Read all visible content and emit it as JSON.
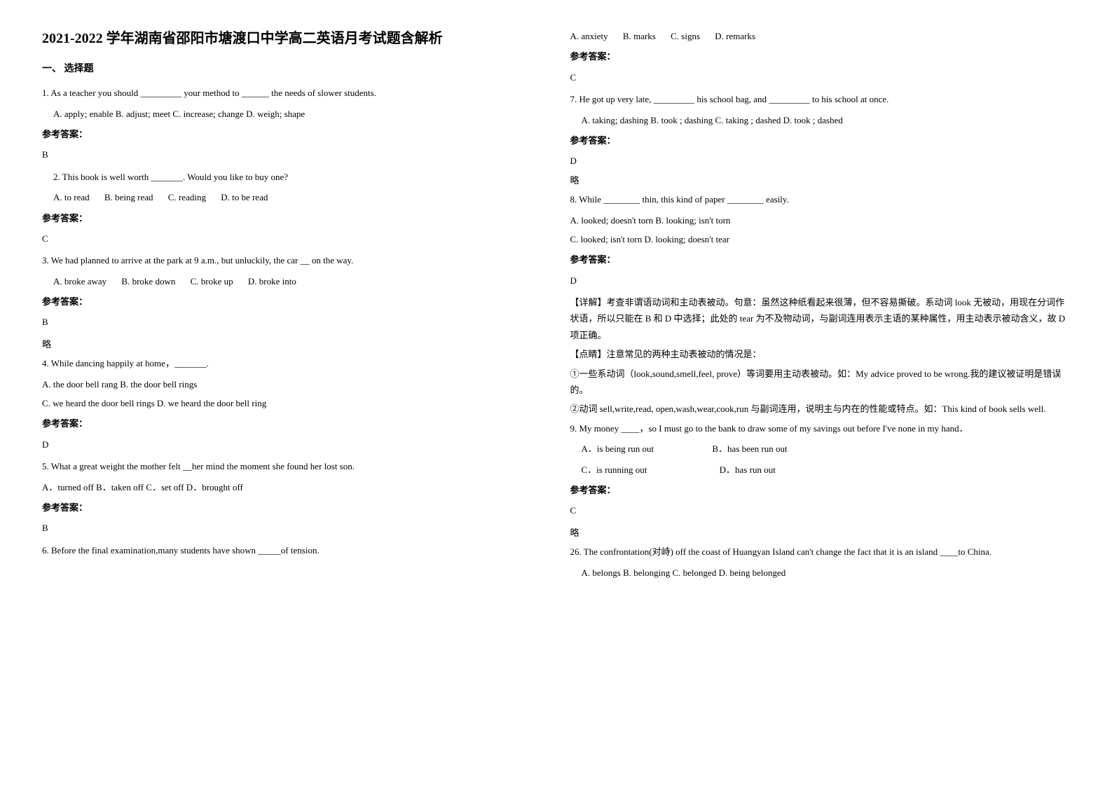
{
  "title": "2021-2022 学年湖南省邵阳市塘渡口中学高二英语月考试题含解析",
  "section1_heading": "一、 选择题",
  "q1": {
    "text": "1. As a teacher you should _________ your method to ______ the needs of slower students.",
    "options": "A. apply; enable    B. adjust; meet    C. increase; change    D. weigh; shape",
    "answer_label": "参考答案：",
    "answer": "B"
  },
  "q2": {
    "text": "2. This book is well worth _______. Would you like to buy one?",
    "opt_a": "A. to read",
    "opt_b": "B. being read",
    "opt_c": "C. reading",
    "opt_d": "D. to be read",
    "answer_label": "参考答案：",
    "answer": "C"
  },
  "q3": {
    "text": "3. We had planned to arrive at the park at 9 a.m., but unluckily, the car __ on the way.",
    "opt_a": "A. broke away",
    "opt_b": "B. broke down",
    "opt_c": "C. broke up",
    "opt_d": "D. broke into",
    "answer_label": "参考答案：",
    "answer": "B",
    "note": "略"
  },
  "q4": {
    "text": "4. While dancing happily at home，_______.",
    "line1": "A. the door bell rang        B. the door bell rings",
    "line2": "C. we heard the door bell rings    D. we heard the door bell ring",
    "answer_label": "参考答案：",
    "answer": "D"
  },
  "q5": {
    "text": "5. What a great weight the mother felt __her mind the moment she found her lost son.",
    "options": "A．turned off    B．taken off    C．set off    D．brought off",
    "answer_label": "参考答案：",
    "answer": "B"
  },
  "q6": {
    "text": "6. Before the final examination,many students have shown _____of tension.",
    "opt_a": "A. anxiety",
    "opt_b": "B. marks",
    "opt_c": "C. signs",
    "opt_d": "D. remarks",
    "answer_label": "参考答案：",
    "answer": "C"
  },
  "q7": {
    "text": "7. He got up very late, _________ his school bag, and _________ to his school at once.",
    "options": "A. taking; dashing     B. took ; dashing                     C. taking ; dashed     D. took ; dashed",
    "answer_label": "参考答案：",
    "answer": "D",
    "note": "略"
  },
  "q8": {
    "text": "8. While ________ thin, this kind of paper ________ easily.",
    "line1": "A. looked; doesn't torn   B. looking; isn't torn",
    "line2": "C. looked; isn't torn     D. looking; doesn't tear",
    "answer_label": "参考答案：",
    "answer": "D",
    "explain1": "【详解】考查非谓语动词和主动表被动。句意：虽然这种纸看起来很薄，但不容易撕破。系动词 look 无被动，用现在分词作状语，所以只能在 B 和 D 中选择；此处的 tear 为不及物动词，与副词连用表示主语的某种属性，用主动表示被动含义，故 D 项正确。",
    "explain2": "【点睛】注意常见的两种主动表被动的情况是：",
    "explain3": "①一些系动词（look,sound,smell,feel, prove）等词要用主动表被动。如：My advice proved to be wrong.我的建议被证明是错误的。",
    "explain4": "②动词 sell,write,read, open,wash,wear,cook,run 与副词连用，说明主与内在的性能或特点。如：This kind of book sells well."
  },
  "q9": {
    "text": "9. My money ____，so I must go to the bank to draw some of my savings out before I've none in my hand．",
    "opt_a": "A．is being run out",
    "opt_b": "B．has been run out",
    "opt_c": "C．is running out",
    "opt_d": "D．has run out",
    "answer_label": "参考答案：",
    "answer": "C",
    "note": "略"
  },
  "q10": {
    "text": "26. The confrontation(对峙) off the coast of Huangyan Island can't change the fact that it is an island ____to China.",
    "options": "A. belongs    B. belonging    C. belonged    D. being belonged"
  }
}
